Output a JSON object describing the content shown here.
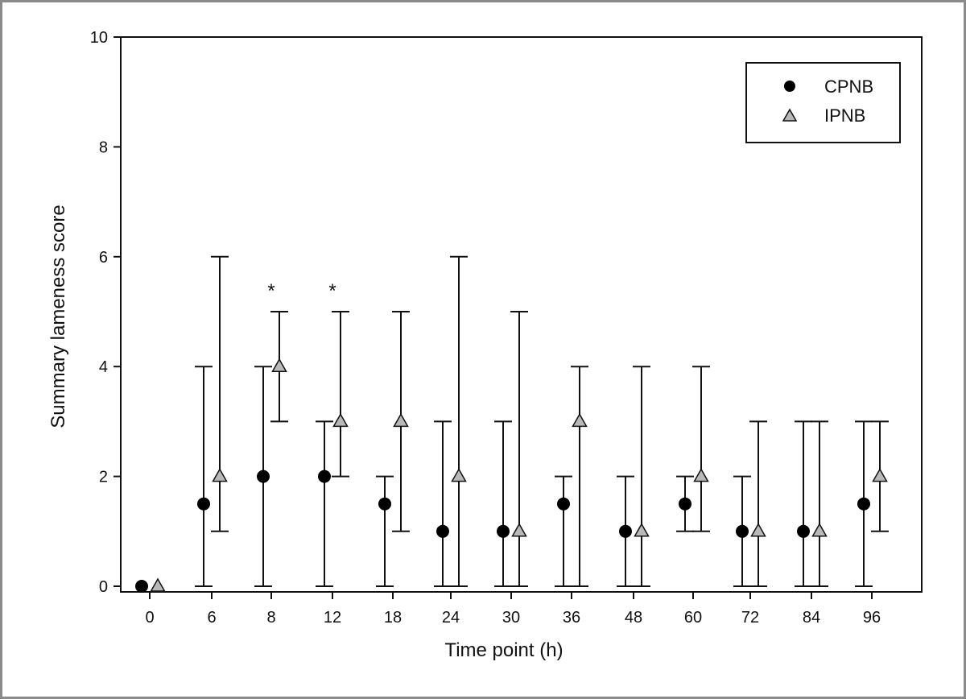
{
  "chart_data": {
    "type": "scatter",
    "title": "",
    "xlabel": "Time point (h)",
    "ylabel": "Summary lameness score",
    "ylim": [
      0,
      10
    ],
    "yticks": [
      "0",
      "2",
      "4",
      "6",
      "8",
      "10"
    ],
    "categories": [
      "0",
      "6",
      "8",
      "12",
      "18",
      "24",
      "30",
      "36",
      "48",
      "60",
      "72",
      "84",
      "96"
    ],
    "legend_position": "top-right",
    "grid": false,
    "series": [
      {
        "name": "CPNB",
        "marker": "circle",
        "color": "#000000",
        "values": [
          0,
          1.5,
          2,
          2,
          1.5,
          1,
          1,
          1.5,
          1,
          1.5,
          1,
          1,
          1.5
        ],
        "err_low": [
          0,
          0,
          0,
          0,
          0,
          0,
          0,
          0,
          0,
          1,
          0,
          0,
          0
        ],
        "err_high": [
          0,
          4,
          4,
          3,
          2,
          3,
          3,
          2,
          2,
          2,
          2,
          3,
          3
        ]
      },
      {
        "name": "IPNB",
        "marker": "triangle",
        "color": "#b8b8b8",
        "values": [
          0,
          2,
          4,
          3,
          3,
          2,
          1,
          3,
          1,
          2,
          1,
          1,
          2
        ],
        "err_low": [
          0,
          1,
          3,
          2,
          1,
          0,
          0,
          0,
          0,
          1,
          0,
          0,
          1
        ],
        "err_high": [
          0,
          6,
          5,
          5,
          5,
          6,
          5,
          4,
          4,
          4,
          3,
          3,
          3
        ]
      }
    ],
    "annotations": [
      {
        "category": "8",
        "text": "*",
        "y": 5.5
      },
      {
        "category": "12",
        "text": "*",
        "y": 5.5
      }
    ]
  }
}
